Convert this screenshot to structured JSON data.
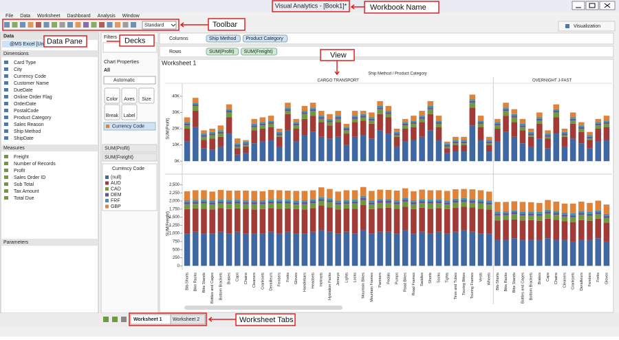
{
  "window": {
    "title": "Visual Analytics - [Book1]*"
  },
  "menu": [
    "File",
    "Data",
    "Worksheet",
    "Dashboard",
    "Analysis",
    "Window"
  ],
  "toolbar": {
    "view_size": "Standard"
  },
  "visualization_button": "Visualization",
  "data_pane": {
    "title": "Data",
    "source": "@MS Excel [Unti...",
    "dimensions_title": "Dimensions",
    "dimensions": [
      "Card Type",
      "City",
      "Currency Code",
      "Customer Name",
      "DueDate",
      "Online Order Flag",
      "OrderDate",
      "PostalCode",
      "Product Category",
      "Sales Reason",
      "Ship Method",
      "ShipDate"
    ],
    "measures_title": "Measures",
    "measures": [
      "Freight",
      "Number of Records",
      "Profit",
      "Sales Order ID",
      "Sub Total",
      "Tax Amount",
      "Total Due"
    ],
    "parameters_title": "Parameters"
  },
  "shelves": {
    "filters": "Filters",
    "columns_label": "Columns",
    "columns": [
      "Ship Method",
      "Product Category"
    ],
    "rows_label": "Rows",
    "rows": [
      "SUM(Profit)",
      "SUM(Freight)"
    ]
  },
  "chart_properties": {
    "title": "Chart Properties",
    "scope": "All",
    "mark_type": "Automatic",
    "buttons": [
      "Color",
      "Axes",
      "Size",
      "Break",
      "Label"
    ],
    "color_field": "Currency Code",
    "row_fields": [
      "SUM(Profit)",
      "SUM(Freight)"
    ]
  },
  "chart_data": {
    "type": "bar",
    "stacked": true,
    "title": "Worksheet 1",
    "subtitle": "Ship Method / Product Category",
    "legend_title": "Currency Code",
    "panels": [
      {
        "title": "CARGO TRANSPORT",
        "categories": [
          "Bib-Shorts",
          "Bike Racks",
          "Bike Stands",
          "Bottles and Cages",
          "Bottom Brackets",
          "Brakes",
          "Caps",
          "Chains",
          "Cleaners",
          "Cranksets",
          "Derailleurs",
          "Fenders",
          "Forks",
          "Gloves",
          "Handlebars",
          "Headsets",
          "Helmets",
          "Hydration Packs",
          "Jerseys",
          "Lights",
          "Locks",
          "Mountain Bikes",
          "Mountain Frames",
          "Panniers",
          "Pedals",
          "Pumps",
          "Road Bikes",
          "Road Frames",
          "Saddles",
          "Shorts",
          "Socks",
          "Tights",
          "Tires and Tubes",
          "Touring Bikes",
          "Touring Frames",
          "Vests",
          "Wheels"
        ]
      },
      {
        "title": "OVERNIGHT J-FAST",
        "categories": [
          "Bib-Shorts",
          "Bike Racks",
          "Bike Stands",
          "Bottles and Cages",
          "Bottom Brackets",
          "Brakes",
          "Caps",
          "Chains",
          "Cleaners",
          "Cranksets",
          "Derailleurs",
          "Fenders",
          "Forks",
          "Gloves"
        ]
      }
    ],
    "rows": [
      {
        "label": "SUM(Profit)",
        "ylim": [
          -5000,
          45000
        ],
        "yticks": [
          {
            "value": 0,
            "label": "0K"
          },
          {
            "value": 10000,
            "label": "10K"
          },
          {
            "value": 20000,
            "label": "20K"
          },
          {
            "value": 30000,
            "label": "30K"
          },
          {
            "value": 40000,
            "label": "40K"
          }
        ]
      },
      {
        "label": "SUM(Freight)",
        "ylim": [
          -100,
          2700
        ],
        "yticks": [
          0,
          250,
          500,
          750,
          {
            "value": 1000,
            "label": "1,000"
          },
          {
            "value": 1250,
            "label": "1,250"
          },
          {
            "value": 1500,
            "label": "1,500"
          },
          {
            "value": 1750,
            "label": "1,750"
          },
          {
            "value": 2000,
            "label": "2,000"
          },
          {
            "value": 2250,
            "label": "2,250"
          },
          {
            "value": 2500,
            "label": "2,500"
          }
        ]
      }
    ],
    "series": [
      {
        "name": "(null)",
        "color": "#3f68a3",
        "values": [
          [
            [
              12000,
              21000,
              8000,
              7000,
              9000,
              17000,
              4000,
              5000,
              11000,
              12000,
              13000,
              9000,
              19000,
              12000,
              16000,
              18000,
              15000,
              14000,
              15000,
              10000,
              15000,
              16000,
              14000,
              19000,
              17000,
              9000,
              12000,
              13000,
              15000,
              19000,
              13000,
              5000,
              6000,
              6000,
              22000,
              13000,
              6000
            ],
            [
              12000,
              18000,
              15000,
              11000,
              9000,
              14000,
              8000,
              17000,
              9000,
              14000,
              11000,
              8000,
              12000,
              13000
            ]
          ],
          [
            [
              1000,
              1050,
              1000,
              1000,
              1050,
              1000,
              1050,
              1000,
              1000,
              1000,
              1050,
              1000,
              1050,
              1000,
              1000,
              1050,
              1100,
              1050,
              1000,
              1050,
              1000,
              1100,
              1000,
              1050,
              1050,
              1000,
              1100,
              1000,
              1050,
              1000,
              1050,
              1000,
              1050,
              1100,
              1050,
              1000,
              1000
            ],
            [
              800,
              800,
              850,
              800,
              800,
              800,
              850,
              800,
              800,
              750,
              800,
              800,
              850,
              750
            ]
          ]
        ]
      },
      {
        "name": "AUD",
        "color": "#a23b37",
        "values": [
          [
            [
              8000,
              10000,
              5000,
              7000,
              6000,
              10000,
              4000,
              4000,
              8000,
              8000,
              8000,
              6000,
              10000,
              8000,
              10000,
              10000,
              9000,
              8000,
              9000,
              7000,
              9000,
              9000,
              9000,
              10000,
              10000,
              6000,
              8000,
              8000,
              9000,
              10000,
              8000,
              3000,
              4000,
              4000,
              11000,
              8000,
              4000
            ],
            [
              8000,
              10000,
              9000,
              8000,
              6000,
              9000,
              6000,
              10000,
              6000,
              9000,
              7000,
              5000,
              8000,
              8000
            ]
          ],
          [
            [
              750,
              720,
              760,
              740,
              730,
              750,
              720,
              760,
              740,
              750,
              730,
              760,
              720,
              750,
              740,
              730,
              760,
              750,
              740,
              720,
              760,
              780,
              750,
              730,
              740,
              760,
              720,
              750,
              740,
              760,
              730,
              750,
              740,
              720,
              750,
              760,
              740
            ],
            [
              600,
              620,
              580,
              600,
              610,
              590,
              600,
              620,
              580,
              600,
              610,
              590,
              600,
              580
            ]
          ]
        ]
      },
      {
        "name": "CAD",
        "color": "#6f9a40",
        "values": [
          [
            [
              2000,
              3000,
              2000,
              2000,
              2000,
              3000,
              1000,
              1000,
              2000,
              2000,
              2000,
              1000,
              2000,
              2000,
              3000,
              3000,
              2000,
              2000,
              2000,
              2000,
              2000,
              2000,
              2000,
              3000,
              2000,
              1000,
              2000,
              2000,
              2000,
              3000,
              2000,
              1000,
              1000,
              1000,
              3000,
              2000,
              1000
            ],
            [
              2000,
              3000,
              3000,
              2000,
              1000,
              2000,
              1000,
              3000,
              1000,
              2000,
              2000,
              1000,
              2000,
              2000
            ]
          ],
          [
            [
              150,
              140,
              160,
              150,
              140,
              160,
              150,
              140,
              160,
              150,
              140,
              160,
              150,
              140,
              160,
              150,
              140,
              160,
              150,
              140,
              160,
              150,
              140,
              160,
              150,
              140,
              160,
              150,
              140,
              160,
              150,
              140,
              160,
              150,
              140,
              160,
              150
            ],
            [
              150,
              140,
              160,
              150,
              140,
              150,
              160,
              150,
              140,
              150,
              160,
              150,
              140,
              150
            ]
          ]
        ]
      },
      {
        "name": "DEM",
        "color": "#6b4f97",
        "values": [
          [
            [
              1000,
              1000,
              1000,
              1000,
              1000,
              1000,
              1000,
              1000,
              1000,
              1000,
              1000,
              1000,
              1000,
              1000,
              1000,
              1000,
              1000,
              1000,
              1000,
              1000,
              1000,
              1000,
              1000,
              1000,
              1000,
              1000,
              1000,
              1000,
              1000,
              1000,
              1000,
              1000,
              1000,
              1000,
              1000,
              1000,
              1000
            ],
            [
              1000,
              1000,
              1000,
              1000,
              1000,
              1000,
              1000,
              1000,
              1000,
              1000,
              1000,
              1000,
              1000,
              1000
            ]
          ],
          [
            [
              60,
              60,
              60,
              60,
              60,
              60,
              60,
              60,
              60,
              60,
              60,
              60,
              60,
              60,
              60,
              60,
              60,
              60,
              60,
              60,
              60,
              60,
              60,
              60,
              60,
              60,
              60,
              60,
              60,
              60,
              60,
              60,
              60,
              60,
              60,
              60,
              60
            ],
            [
              60,
              60,
              60,
              60,
              60,
              60,
              60,
              60,
              60,
              60,
              60,
              60,
              60,
              60
            ]
          ]
        ]
      },
      {
        "name": "FRF",
        "color": "#3a97b3",
        "values": [
          [
            [
              1000,
              1000,
              1000,
              1000,
              1000,
              1000,
              1000,
              1000,
              1000,
              1000,
              1000,
              1000,
              1000,
              1000,
              1000,
              1000,
              1000,
              1000,
              1000,
              1000,
              1000,
              1000,
              1000,
              1000,
              1000,
              1000,
              1000,
              1000,
              1000,
              1000,
              1000,
              1000,
              1000,
              1000,
              1000,
              1000,
              1000
            ],
            [
              1000,
              1000,
              1000,
              1000,
              1000,
              1000,
              1000,
              1000,
              1000,
              1000,
              1000,
              1000,
              1000,
              1000
            ]
          ],
          [
            [
              60,
              60,
              60,
              60,
              60,
              60,
              60,
              60,
              60,
              60,
              60,
              60,
              60,
              60,
              60,
              60,
              60,
              60,
              60,
              60,
              60,
              60,
              60,
              60,
              60,
              60,
              60,
              60,
              60,
              60,
              60,
              60,
              60,
              60,
              60,
              60,
              60
            ],
            [
              60,
              60,
              60,
              60,
              60,
              60,
              60,
              60,
              60,
              60,
              60,
              60,
              60,
              60
            ]
          ]
        ]
      },
      {
        "name": "GBP",
        "color": "#df833b",
        "values": [
          [
            [
              3000,
              3000,
              2000,
              2000,
              3000,
              3000,
              3000,
              1000,
              3000,
              3000,
              3000,
              2000,
              3000,
              2000,
              3000,
              3000,
              3000,
              3000,
              3000,
              2000,
              3000,
              2000,
              3000,
              3000,
              3000,
              2000,
              2000,
              3000,
              3000,
              3000,
              3000,
              1000,
              2000,
              2000,
              3000,
              3000,
              2000
            ],
            [
              2000,
              3000,
              3000,
              3000,
              2000,
              3000,
              2000,
              3000,
              2000,
              3000,
              2000,
              2000,
              2000,
              3000
            ]
          ],
          [
            [
              280,
              300,
              290,
              280,
              300,
              290,
              280,
              300,
              290,
              280,
              300,
              290,
              280,
              300,
              290,
              280,
              300,
              290,
              280,
              300,
              290,
              280,
              300,
              290,
              280,
              300,
              290,
              280,
              300,
              290,
              280,
              300,
              290,
              280,
              300,
              290,
              280
            ],
            [
              300,
              290,
              280,
              300,
              290,
              280,
              300,
              290,
              280,
              300,
              290,
              280,
              300,
              290
            ]
          ]
        ]
      }
    ]
  },
  "tabs": [
    "Worksheet 1",
    "Worksheet 2"
  ],
  "annotations": [
    "Workbook Name",
    "Toolbar",
    "Data Pane",
    "Decks",
    "View",
    "Worksheet Tabs"
  ]
}
